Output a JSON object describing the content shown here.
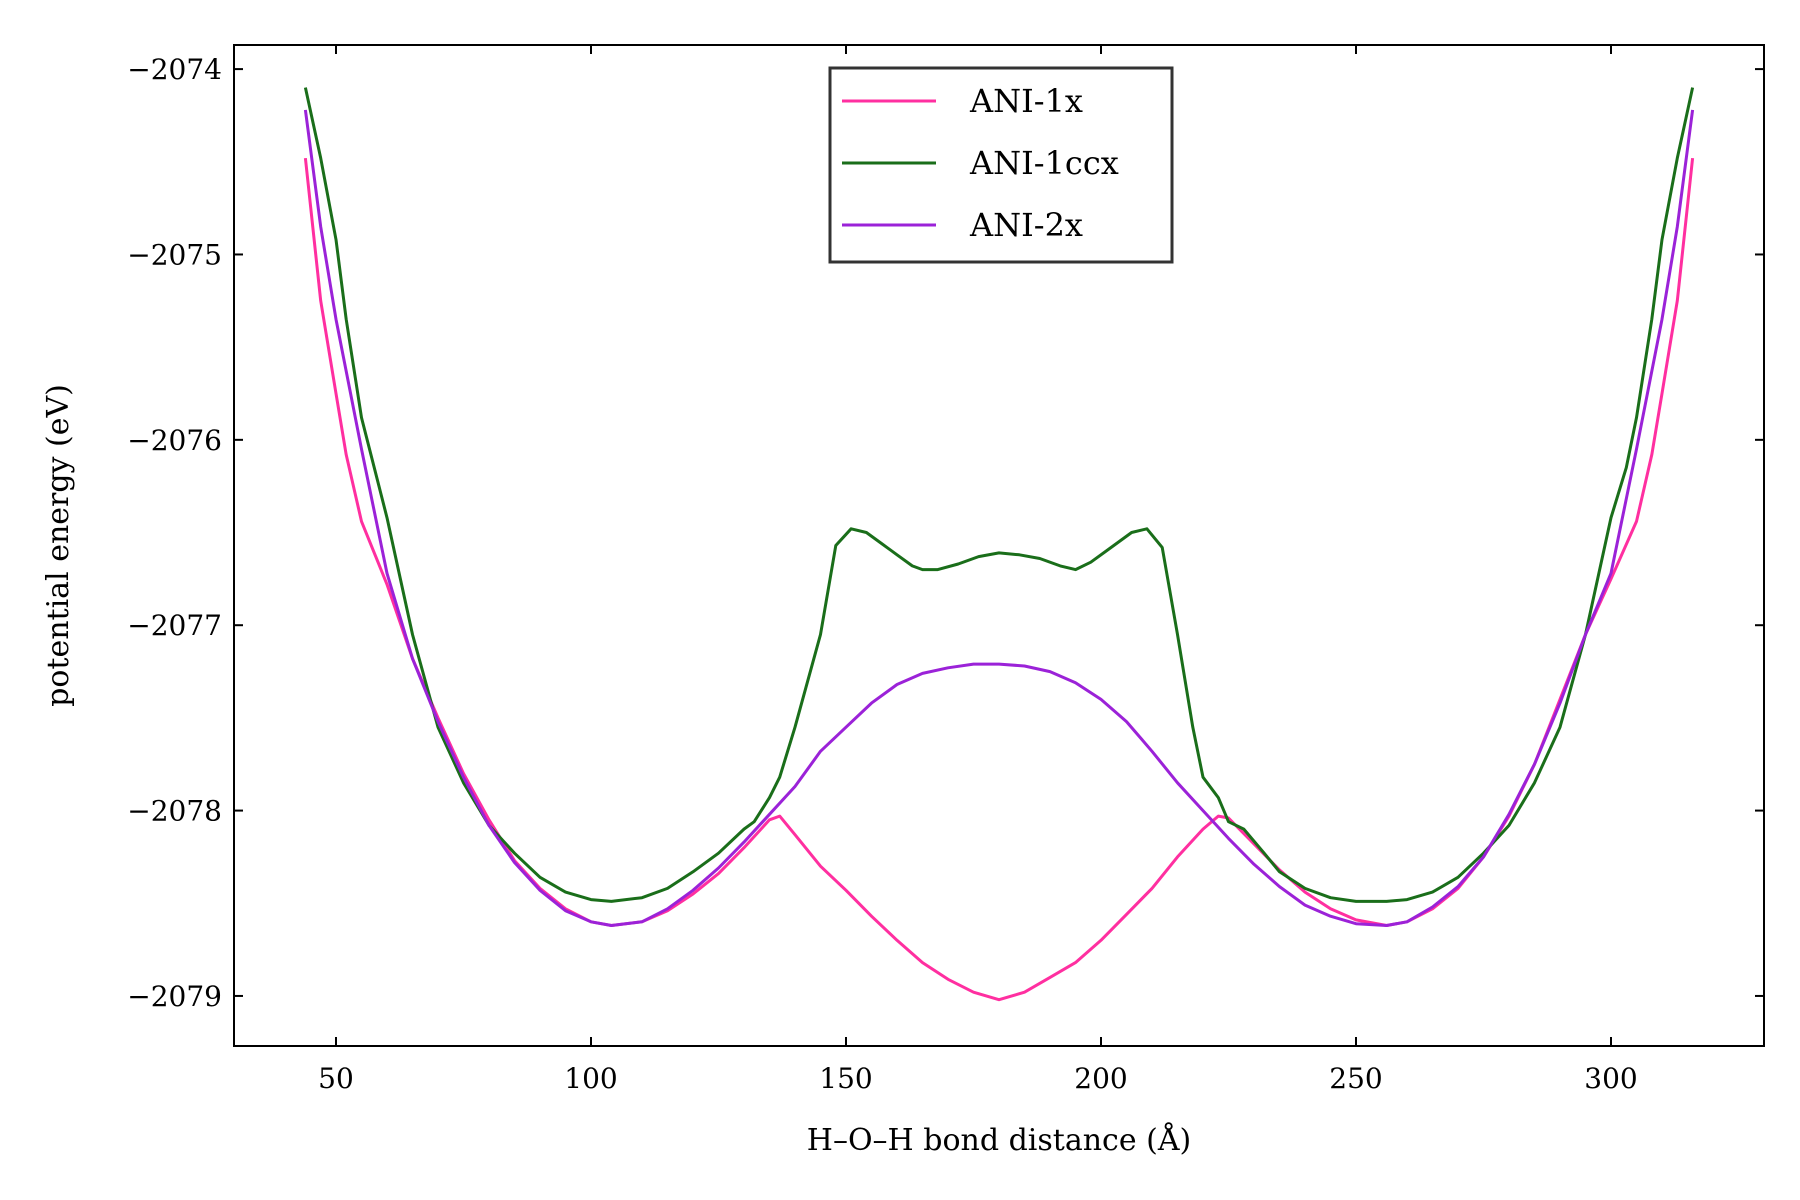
{
  "chart_data": {
    "type": "line",
    "title": "",
    "xlabel": "H–O–H bond distance (Å)",
    "ylabel": "potential energy (eV)",
    "xlim": [
      30,
      330
    ],
    "ylim": [
      -2079.27,
      -2073.87
    ],
    "xticks": [
      50,
      100,
      150,
      200,
      250,
      300
    ],
    "xtick_labels": [
      "50",
      "100",
      "150",
      "200",
      "250",
      "300"
    ],
    "yticks": [
      -2079,
      -2078,
      -2077,
      -2076,
      -2075,
      -2074
    ],
    "ytick_labels": [
      "−2079",
      "−2078",
      "−2077",
      "−2076",
      "−2075",
      "−2074"
    ],
    "grid": false,
    "legend_position": "top-center",
    "series": [
      {
        "name": "ANI-1x",
        "color": "#ff2fa0",
        "x": [
          44,
          47,
          50,
          52,
          55,
          60,
          65,
          70,
          75,
          80,
          85,
          90,
          95,
          100,
          104,
          110,
          115,
          120,
          125,
          130,
          135,
          137,
          140,
          145,
          150,
          155,
          160,
          165,
          170,
          175,
          180,
          185,
          190,
          195,
          200,
          205,
          210,
          215,
          220,
          223,
          225,
          230,
          235,
          240,
          245,
          250,
          256,
          260,
          265,
          270,
          275,
          280,
          285,
          290,
          295,
          300,
          305,
          308,
          310,
          313,
          316
        ],
        "y": [
          -2074.48,
          -2075.25,
          -2075.75,
          -2076.08,
          -2076.44,
          -2076.78,
          -2077.18,
          -2077.5,
          -2077.8,
          -2078.05,
          -2078.27,
          -2078.42,
          -2078.53,
          -2078.6,
          -2078.62,
          -2078.6,
          -2078.54,
          -2078.45,
          -2078.34,
          -2078.2,
          -2078.05,
          -2078.03,
          -2078.13,
          -2078.3,
          -2078.43,
          -2078.57,
          -2078.7,
          -2078.82,
          -2078.91,
          -2078.98,
          -2079.02,
          -2078.98,
          -2078.9,
          -2078.82,
          -2078.7,
          -2078.56,
          -2078.42,
          -2078.25,
          -2078.1,
          -2078.03,
          -2078.04,
          -2078.18,
          -2078.32,
          -2078.44,
          -2078.53,
          -2078.59,
          -2078.62,
          -2078.6,
          -2078.53,
          -2078.42,
          -2078.25,
          -2078.03,
          -2077.75,
          -2077.4,
          -2077.05,
          -2076.75,
          -2076.44,
          -2076.08,
          -2075.75,
          -2075.25,
          -2074.48
        ]
      },
      {
        "name": "ANI-1ccx",
        "color": "#1a6e1a",
        "x": [
          44,
          47,
          50,
          52,
          55,
          60,
          65,
          70,
          75,
          80,
          85,
          90,
          95,
          100,
          104,
          110,
          115,
          120,
          125,
          130,
          132,
          135,
          137,
          140,
          145,
          148,
          151,
          154,
          157,
          160,
          163,
          165,
          168,
          172,
          176,
          180,
          184,
          188,
          192,
          195,
          198,
          202,
          206,
          209,
          212,
          215,
          218,
          220,
          223,
          225,
          228,
          232,
          235,
          240,
          245,
          250,
          256,
          260,
          265,
          270,
          275,
          280,
          285,
          290,
          295,
          300,
          303,
          305,
          308,
          310,
          313,
          316
        ],
        "y": [
          -2074.1,
          -2074.48,
          -2074.92,
          -2075.35,
          -2075.88,
          -2076.42,
          -2077.05,
          -2077.55,
          -2077.85,
          -2078.08,
          -2078.23,
          -2078.36,
          -2078.44,
          -2078.48,
          -2078.49,
          -2078.47,
          -2078.42,
          -2078.33,
          -2078.23,
          -2078.1,
          -2078.06,
          -2077.93,
          -2077.82,
          -2077.55,
          -2077.05,
          -2076.57,
          -2076.48,
          -2076.5,
          -2076.56,
          -2076.62,
          -2076.68,
          -2076.7,
          -2076.7,
          -2076.67,
          -2076.63,
          -2076.61,
          -2076.62,
          -2076.64,
          -2076.68,
          -2076.7,
          -2076.66,
          -2076.58,
          -2076.5,
          -2076.48,
          -2076.58,
          -2077.05,
          -2077.55,
          -2077.82,
          -2077.93,
          -2078.06,
          -2078.1,
          -2078.23,
          -2078.33,
          -2078.42,
          -2078.47,
          -2078.49,
          -2078.49,
          -2078.48,
          -2078.44,
          -2078.36,
          -2078.23,
          -2078.08,
          -2077.85,
          -2077.55,
          -2077.05,
          -2076.42,
          -2076.15,
          -2075.88,
          -2075.35,
          -2074.92,
          -2074.48,
          -2074.1
        ]
      },
      {
        "name": "ANI-2x",
        "color": "#9b22d8",
        "x": [
          44,
          47,
          50,
          55,
          60,
          65,
          70,
          75,
          80,
          85,
          90,
          95,
          100,
          104,
          110,
          115,
          120,
          125,
          130,
          135,
          140,
          145,
          150,
          155,
          160,
          165,
          170,
          175,
          180,
          185,
          190,
          195,
          200,
          205,
          210,
          215,
          220,
          225,
          230,
          235,
          240,
          245,
          250,
          256,
          260,
          265,
          270,
          275,
          280,
          285,
          290,
          295,
          300,
          305,
          310,
          313,
          316
        ],
        "y": [
          -2074.22,
          -2074.85,
          -2075.35,
          -2076.05,
          -2076.72,
          -2077.18,
          -2077.52,
          -2077.82,
          -2078.08,
          -2078.28,
          -2078.43,
          -2078.54,
          -2078.6,
          -2078.62,
          -2078.6,
          -2078.53,
          -2078.43,
          -2078.31,
          -2078.17,
          -2078.02,
          -2077.87,
          -2077.68,
          -2077.55,
          -2077.42,
          -2077.32,
          -2077.26,
          -2077.23,
          -2077.21,
          -2077.21,
          -2077.22,
          -2077.25,
          -2077.31,
          -2077.4,
          -2077.52,
          -2077.68,
          -2077.85,
          -2078.0,
          -2078.15,
          -2078.29,
          -2078.41,
          -2078.51,
          -2078.57,
          -2078.61,
          -2078.62,
          -2078.6,
          -2078.52,
          -2078.41,
          -2078.25,
          -2078.02,
          -2077.75,
          -2077.42,
          -2077.05,
          -2076.72,
          -2076.05,
          -2075.35,
          -2074.85,
          -2074.22
        ]
      }
    ]
  }
}
